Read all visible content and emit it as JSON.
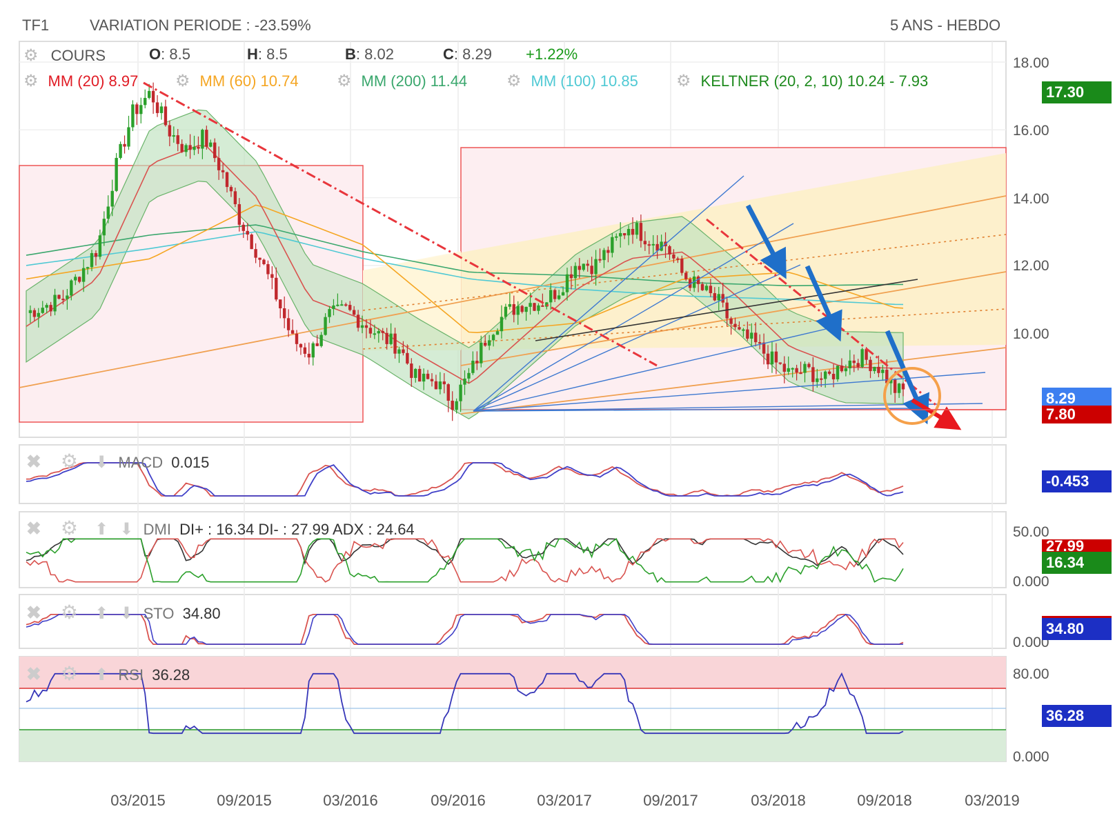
{
  "header": {
    "symbol": "TF1",
    "variation": "VARIATION PERIODE : -23.59%",
    "period": "5 ANS - HEBDO"
  },
  "legend": {
    "cours_label": "COURS",
    "o_key": "O",
    "o_val": ": 8.5",
    "h_key": "H",
    "h_val": ": 8.5",
    "b_key": "B",
    "b_val": ": 8.02",
    "c_key": "C",
    "c_val": ": 8.29",
    "change": "+1.22%",
    "mm20": "MM (20)  8.97",
    "mm60": "MM (60)  10.74",
    "mm200": "MM (200)  11.44",
    "mm100": "MM (100)  10.85",
    "keltner": "KELTNER (20, 2, 10)  10.24 - 7.93"
  },
  "colors": {
    "up": "#2ca02c",
    "down": "#d62728",
    "mm20": "#e8363c",
    "mm60": "#f5a623",
    "mm200": "#3aa76d",
    "mm100": "#4fc9d4",
    "keltner": "#2e8b2e",
    "trend_blue": "#1f6fc9",
    "price_tag_blue": "#3d7ff0",
    "tag_red": "#cc0000",
    "tag_green": "#1a8a1a",
    "tag_navy": "#1c2fc4"
  },
  "price_axis": {
    "ticks": [
      "18.00",
      "16.00",
      "14.00",
      "12.00",
      "10.00"
    ],
    "tags": {
      "high": "17.30",
      "last": "8.29",
      "low": "7.80"
    }
  },
  "dates": [
    "03/2015",
    "09/2015",
    "03/2016",
    "09/2016",
    "03/2017",
    "09/2017",
    "03/2018",
    "09/2018",
    "03/2019"
  ],
  "macd": {
    "label": "MACD",
    "value": "0.015",
    "tag": "-0.453"
  },
  "dmi": {
    "label": "DMI",
    "values": "DI+ : 16.34  DI- : 27.99  ADX : 24.64",
    "ticks": [
      "50.00",
      "0.000"
    ],
    "tag_red": "27.99",
    "tag_green": "16.34"
  },
  "sto": {
    "label": "STO",
    "value": "34.80",
    "ticks": [
      "0.000"
    ],
    "tag": "34.80"
  },
  "rsi": {
    "label": "RSI",
    "value": "36.28",
    "ticks": [
      "80.00",
      "0.000"
    ],
    "tag": "36.28"
  },
  "chart_data": {
    "type": "line",
    "y_range": [
      6.9,
      18.6
    ],
    "x_range": [
      "2014-09",
      "2019-03"
    ],
    "scale": "weekly",
    "series": [
      {
        "name": "COURS",
        "x": [
          "2014-09",
          "2014-11",
          "2015-01",
          "2015-02",
          "2015-03",
          "2015-04",
          "2015-05",
          "2015-06",
          "2015-07",
          "2015-08",
          "2015-09",
          "2015-10",
          "2015-11",
          "2015-12",
          "2016-01",
          "2016-02",
          "2016-03",
          "2016-04",
          "2016-05",
          "2016-06",
          "2016-07",
          "2016-08",
          "2016-09",
          "2016-10",
          "2016-11",
          "2016-12",
          "2017-01",
          "2017-02",
          "2017-03",
          "2017-04",
          "2017-05",
          "2017-06",
          "2017-07",
          "2017-08",
          "2017-09",
          "2017-10",
          "2017-11",
          "2017-12",
          "2018-01",
          "2018-02",
          "2018-03",
          "2018-04",
          "2018-05",
          "2018-06",
          "2018-07",
          "2018-08",
          "2018-09",
          "2018-10"
        ],
        "values": [
          10.6,
          11.0,
          12.5,
          14.8,
          16.5,
          17.1,
          16.0,
          15.4,
          15.8,
          14.8,
          13.4,
          12.4,
          11.2,
          9.8,
          9.4,
          10.5,
          10.7,
          10.3,
          9.9,
          9.6,
          8.6,
          8.6,
          8.0,
          8.8,
          10.0,
          10.6,
          10.9,
          10.9,
          11.3,
          12.1,
          12.0,
          12.6,
          13.2,
          12.8,
          12.6,
          11.7,
          11.3,
          10.9,
          10.0,
          9.7,
          9.2,
          8.8,
          8.9,
          8.6,
          9.1,
          9.3,
          9.0,
          8.29
        ]
      },
      {
        "name": "MM (20)",
        "x": [
          "2014-09",
          "2015-01",
          "2015-04",
          "2015-07",
          "2015-10",
          "2016-01",
          "2016-04",
          "2016-07",
          "2016-10",
          "2017-01",
          "2017-04",
          "2017-07",
          "2017-10",
          "2018-01",
          "2018-04",
          "2018-07",
          "2018-10"
        ],
        "values": [
          10.2,
          11.6,
          15.0,
          15.6,
          14.0,
          11.0,
          10.4,
          9.4,
          8.5,
          9.9,
          11.3,
          12.2,
          12.4,
          11.1,
          9.6,
          9.0,
          8.97
        ]
      },
      {
        "name": "MM (60)",
        "x": [
          "2014-09",
          "2015-04",
          "2015-10",
          "2016-04",
          "2016-10",
          "2017-04",
          "2017-10",
          "2018-04",
          "2018-10"
        ],
        "values": [
          11.6,
          12.2,
          13.8,
          12.6,
          10.0,
          10.3,
          11.6,
          11.8,
          10.74
        ]
      },
      {
        "name": "MM (200)",
        "x": [
          "2014-09",
          "2015-04",
          "2015-10",
          "2016-04",
          "2016-10",
          "2017-04",
          "2017-10",
          "2018-04",
          "2018-10"
        ],
        "values": [
          12.3,
          12.9,
          13.2,
          12.4,
          11.8,
          11.7,
          11.5,
          11.4,
          11.44
        ]
      },
      {
        "name": "MM (100)",
        "x": [
          "2014-09",
          "2015-04",
          "2015-10",
          "2016-04",
          "2016-10",
          "2017-04",
          "2017-10",
          "2018-04",
          "2018-10"
        ],
        "values": [
          12.0,
          12.5,
          13.0,
          12.2,
          11.6,
          11.3,
          11.1,
          11.0,
          10.85
        ]
      }
    ],
    "indicators": {
      "macd": {
        "value": 0.015,
        "signal": -0.453
      },
      "dmi": {
        "di_plus": 16.34,
        "di_minus": 27.99,
        "adx": 24.64,
        "ylim": [
          0,
          50
        ]
      },
      "sto": {
        "value": 34.8,
        "ylim": [
          0,
          100
        ]
      },
      "rsi": {
        "value": 36.28,
        "ylim": [
          0,
          100
        ],
        "levels": [
          80,
          20
        ]
      }
    }
  }
}
